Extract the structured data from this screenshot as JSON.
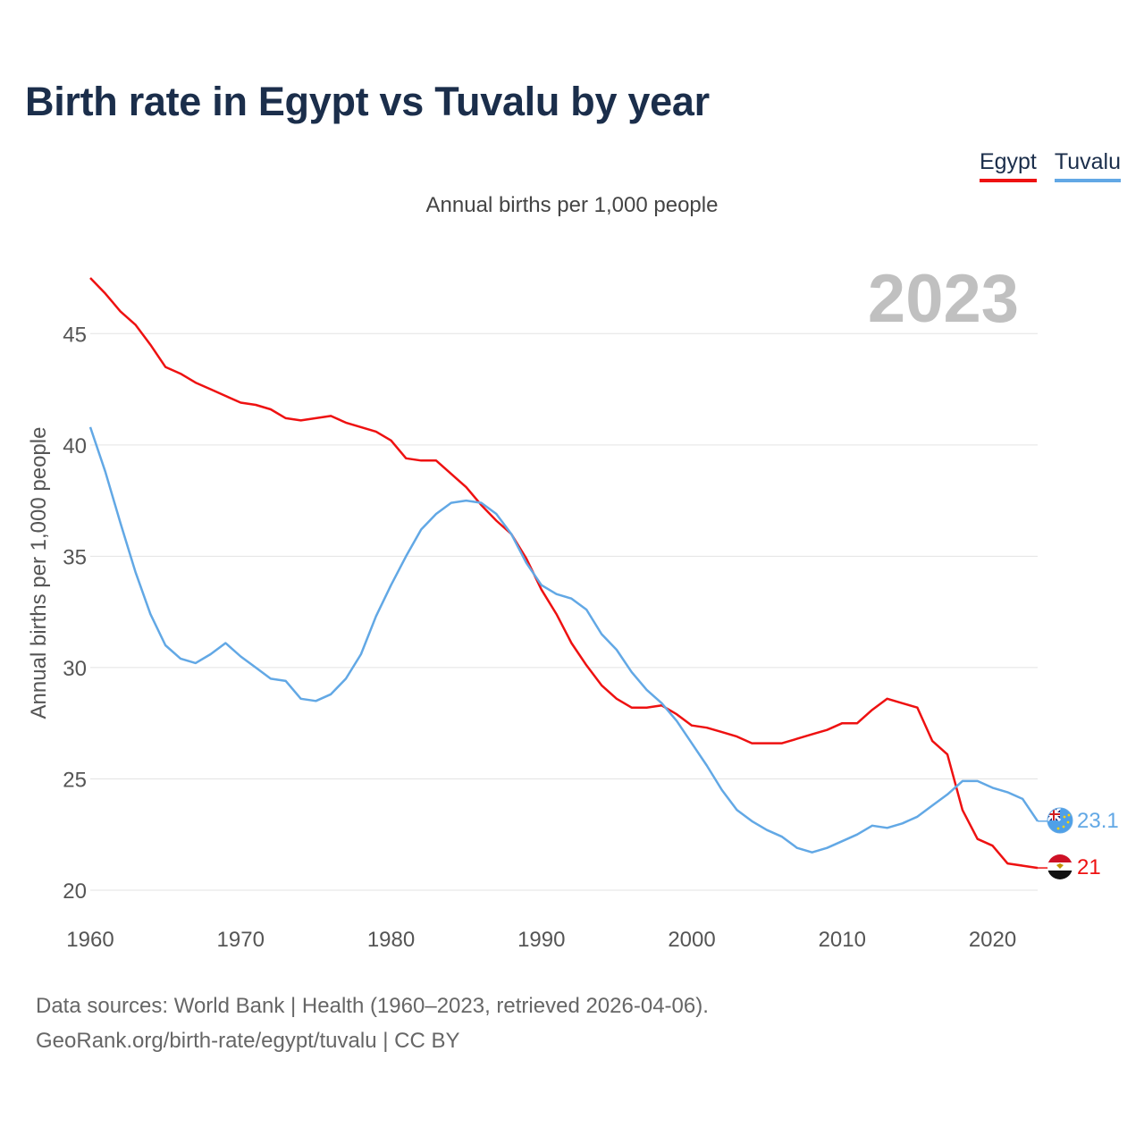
{
  "header": {
    "title": "Birth rate in Egypt vs Tuvalu by year"
  },
  "legend": {
    "items": [
      {
        "label": "Egypt",
        "color": "#ee1111"
      },
      {
        "label": "Tuvalu",
        "color": "#62a8e5"
      }
    ]
  },
  "footer": {
    "sources": "Data sources: World Bank | Health (1960–2023, retrieved 2026-04-06).",
    "link": "GeoRank.org/birth-rate/egypt/tuvalu",
    "license": " | CC BY"
  },
  "chart_data": {
    "type": "line",
    "title": "Birth rate in Egypt vs Tuvalu by year",
    "subtitle": "Annual births per 1,000 people",
    "ylabel": "Annual births per 1,000 people",
    "xlabel": "",
    "year_label": "2023",
    "xlim": [
      1960,
      2023
    ],
    "ylim": [
      20,
      47.5
    ],
    "xticks": [
      1960,
      1970,
      1980,
      1990,
      2000,
      2010,
      2020
    ],
    "yticks": [
      20,
      25,
      30,
      35,
      40,
      45
    ],
    "grid": true,
    "legend_position": "top-right",
    "x": [
      1960,
      1961,
      1962,
      1963,
      1964,
      1965,
      1966,
      1967,
      1968,
      1969,
      1970,
      1971,
      1972,
      1973,
      1974,
      1975,
      1976,
      1977,
      1978,
      1979,
      1980,
      1981,
      1982,
      1983,
      1984,
      1985,
      1986,
      1987,
      1988,
      1989,
      1990,
      1991,
      1992,
      1993,
      1994,
      1995,
      1996,
      1997,
      1998,
      1999,
      2000,
      2001,
      2002,
      2003,
      2004,
      2005,
      2006,
      2007,
      2008,
      2009,
      2010,
      2011,
      2012,
      2013,
      2014,
      2015,
      2016,
      2017,
      2018,
      2019,
      2020,
      2021,
      2022,
      2023
    ],
    "series": [
      {
        "name": "Egypt",
        "color": "#ee1111",
        "end_label": "21",
        "values": [
          47.5,
          46.8,
          46.0,
          45.4,
          44.5,
          43.5,
          43.2,
          42.8,
          42.5,
          42.2,
          41.9,
          41.8,
          41.6,
          41.2,
          41.1,
          41.2,
          41.3,
          41.0,
          40.8,
          40.6,
          40.2,
          39.4,
          39.3,
          39.3,
          38.7,
          38.1,
          37.3,
          36.6,
          36.0,
          34.9,
          33.5,
          32.4,
          31.1,
          30.1,
          29.2,
          28.6,
          28.2,
          28.2,
          28.3,
          27.9,
          27.4,
          27.3,
          27.1,
          26.9,
          26.6,
          26.6,
          26.6,
          26.8,
          27.0,
          27.2,
          27.5,
          27.5,
          28.1,
          28.6,
          28.4,
          28.2,
          26.7,
          26.1,
          23.6,
          22.3,
          22.0,
          21.2,
          21.1,
          21.0
        ]
      },
      {
        "name": "Tuvalu",
        "color": "#62a8e5",
        "end_label": "23.1",
        "values": [
          40.8,
          38.8,
          36.5,
          34.3,
          32.4,
          31.0,
          30.4,
          30.2,
          30.6,
          31.1,
          30.5,
          30.0,
          29.5,
          29.4,
          28.6,
          28.5,
          28.8,
          29.5,
          30.6,
          32.3,
          33.7,
          35.0,
          36.2,
          36.9,
          37.4,
          37.5,
          37.4,
          36.9,
          36.0,
          34.7,
          33.7,
          33.3,
          33.1,
          32.6,
          31.5,
          30.8,
          29.8,
          29.0,
          28.4,
          27.6,
          26.6,
          25.6,
          24.5,
          23.6,
          23.1,
          22.7,
          22.4,
          21.9,
          21.7,
          21.9,
          22.2,
          22.5,
          22.9,
          22.8,
          23.0,
          23.3,
          23.8,
          24.3,
          24.9,
          24.9,
          24.6,
          24.4,
          24.1,
          23.1
        ]
      }
    ]
  }
}
